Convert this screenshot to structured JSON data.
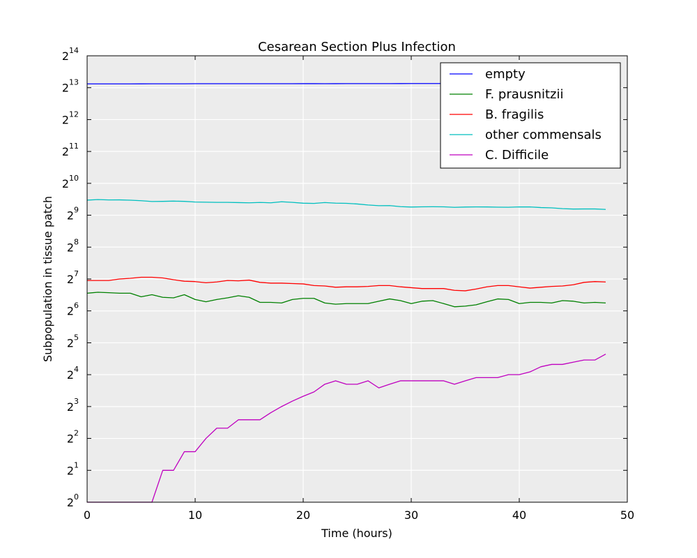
{
  "chart_data": {
    "type": "line",
    "title": "Cesarean Section Plus Infection",
    "xlabel": "Time (hours)",
    "ylabel": "Subpopulation in tissue patch",
    "xlim": [
      0,
      50
    ],
    "ylim": [
      1,
      16384
    ],
    "yscale": "log2",
    "xticks": [
      "0",
      "10",
      "20",
      "30",
      "40",
      "50"
    ],
    "yticks": [
      {
        "base": "2",
        "exp": "0"
      },
      {
        "base": "2",
        "exp": "1"
      },
      {
        "base": "2",
        "exp": "2"
      },
      {
        "base": "2",
        "exp": "3"
      },
      {
        "base": "2",
        "exp": "4"
      },
      {
        "base": "2",
        "exp": "5"
      },
      {
        "base": "2",
        "exp": "6"
      },
      {
        "base": "2",
        "exp": "7"
      },
      {
        "base": "2",
        "exp": "8"
      },
      {
        "base": "2",
        "exp": "9"
      },
      {
        "base": "2",
        "exp": "10"
      },
      {
        "base": "2",
        "exp": "11"
      },
      {
        "base": "2",
        "exp": "12"
      },
      {
        "base": "2",
        "exp": "13"
      },
      {
        "base": "2",
        "exp": "14"
      }
    ],
    "grid": true,
    "background": "#ececec",
    "legend_position": "top-right",
    "x": [
      0,
      1,
      2,
      3,
      4,
      5,
      6,
      7,
      8,
      9,
      10,
      11,
      12,
      13,
      14,
      15,
      16,
      17,
      18,
      19,
      20,
      21,
      22,
      23,
      24,
      25,
      26,
      27,
      28,
      29,
      30,
      31,
      32,
      33,
      34,
      35,
      36,
      37,
      38,
      39,
      40,
      41,
      42,
      43,
      44,
      45,
      46,
      47,
      48
    ],
    "series": [
      {
        "name": "empty",
        "color": "#0000ff",
        "values": [
          8900,
          8900,
          8900,
          8900,
          8900,
          8910,
          8920,
          8920,
          8920,
          8920,
          8930,
          8930,
          8930,
          8930,
          8930,
          8930,
          8930,
          8935,
          8930,
          8935,
          8940,
          8940,
          8935,
          8940,
          8945,
          8945,
          8950,
          8955,
          8955,
          8960,
          8970,
          8970,
          8965,
          8970,
          8970,
          8975,
          8980,
          8980,
          8985,
          8990,
          8990,
          8990,
          8995,
          9000,
          9000,
          9005,
          9010,
          9010,
          9015
        ]
      },
      {
        "name": "F. prausnitzii",
        "color": "#008000",
        "values": [
          94,
          96,
          95,
          94,
          94,
          87,
          91,
          86,
          85,
          91,
          82,
          78,
          82,
          85,
          89,
          86,
          77,
          77,
          76,
          82,
          84,
          84,
          76,
          74,
          75,
          75,
          75,
          79,
          83,
          80,
          75,
          79,
          80,
          75,
          70,
          71,
          73,
          78,
          83,
          82,
          75,
          77,
          77,
          76,
          80,
          79,
          76,
          77,
          76
        ]
      },
      {
        "name": "B. fragilis",
        "color": "#ff0000",
        "values": [
          124,
          124,
          124,
          128,
          130,
          133,
          133,
          131,
          126,
          122,
          121,
          118,
          120,
          124,
          123,
          125,
          119,
          117,
          117,
          116,
          115,
          111,
          110,
          107,
          108,
          108,
          109,
          111,
          111,
          108,
          106,
          104,
          104,
          104,
          100,
          99,
          103,
          108,
          111,
          111,
          108,
          105,
          107,
          109,
          110,
          113,
          119,
          121,
          120
        ]
      },
      {
        "name": "other commensals",
        "color": "#00bfbf",
        "values": [
          711,
          720,
          714,
          715,
          710,
          702,
          690,
          692,
          696,
          692,
          682,
          680,
          677,
          677,
          674,
          671,
          676,
          671,
          686,
          677,
          665,
          662,
          675,
          666,
          663,
          654,
          640,
          630,
          631,
          617,
          612,
          615,
          616,
          615,
          608,
          612,
          614,
          613,
          610,
          609,
          614,
          613,
          605,
          601,
          591,
          586,
          587,
          587,
          581
        ]
      },
      {
        "name": "C. Difficile",
        "color": "#bf00bf",
        "values": [
          1,
          1,
          1,
          1,
          1,
          1,
          1,
          2,
          2,
          3,
          3,
          4,
          5,
          5,
          6,
          6,
          6,
          7,
          8,
          9,
          10,
          11,
          13,
          14,
          13,
          13,
          14,
          12,
          13,
          14,
          14,
          14,
          14,
          14,
          13,
          14,
          15,
          15,
          15,
          16,
          16,
          17,
          19,
          20,
          20,
          21,
          22,
          22,
          25
        ]
      }
    ]
  }
}
